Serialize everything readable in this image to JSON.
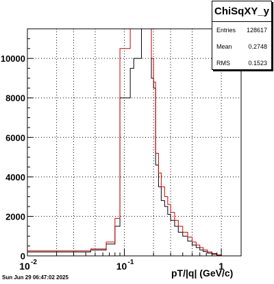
{
  "stats": {
    "name": "ChiSqXY_y",
    "rows": [
      {
        "label": "Entries",
        "value": "128617"
      },
      {
        "label": "Mean",
        "value": "0.2748"
      },
      {
        "label": "RMS",
        "value": "0.1523"
      }
    ]
  },
  "footer": "Sun Jun 29 06:47:02 2025",
  "chart_data": {
    "type": "line",
    "xlabel": "pT/|q| (GeV/c)",
    "x_scale": "log",
    "xlim": [
      0.01,
      1.6
    ],
    "ylim": [
      0,
      11500
    ],
    "grid": true,
    "x_ticks": [
      {
        "v": 0.01,
        "label": "10",
        "exp": "-2"
      },
      {
        "v": 0.1,
        "label": "10",
        "exp": "-1"
      },
      {
        "v": 1,
        "label": "1",
        "exp": ""
      }
    ],
    "y_ticks": [
      {
        "v": 0,
        "label": "0"
      },
      {
        "v": 2000,
        "label": "2000"
      },
      {
        "v": 4000,
        "label": "4000"
      },
      {
        "v": 6000,
        "label": "6000"
      },
      {
        "v": 8000,
        "label": "8000"
      },
      {
        "v": 10000,
        "label": "10000"
      }
    ],
    "series": [
      {
        "color": "#000000",
        "edges": [
          0.01,
          0.045,
          0.065,
          0.08,
          0.09,
          0.115,
          0.125,
          0.15,
          0.17,
          0.19,
          0.2,
          0.21,
          0.225,
          0.24,
          0.26,
          0.28,
          0.3,
          0.33,
          0.36,
          0.4,
          0.45,
          0.5,
          0.55,
          0.6,
          0.65,
          0.72,
          0.8,
          0.9,
          1.0,
          1.6
        ],
        "values": [
          200,
          300,
          600,
          1500,
          8000,
          9500,
          10000,
          11500,
          11500,
          9000,
          8500,
          4600,
          3500,
          2800,
          2500,
          2100,
          1800,
          1500,
          1200,
          1000,
          750,
          550,
          420,
          300,
          220,
          140,
          80,
          40,
          0
        ]
      },
      {
        "color": "#cc0000",
        "edges": [
          0.01,
          0.045,
          0.065,
          0.08,
          0.09,
          0.115,
          0.125,
          0.15,
          0.17,
          0.19,
          0.2,
          0.21,
          0.225,
          0.24,
          0.26,
          0.28,
          0.3,
          0.33,
          0.36,
          0.4,
          0.45,
          0.5,
          0.55,
          0.6,
          0.65,
          0.72,
          0.8,
          0.9,
          1.0,
          1.6
        ],
        "values": [
          250,
          350,
          700,
          1900,
          10500,
          11500,
          11500,
          11500,
          11500,
          10000,
          8800,
          5200,
          4200,
          3500,
          3000,
          2600,
          2200,
          1800,
          1500,
          1200,
          950,
          700,
          550,
          420,
          300,
          200,
          120,
          50,
          0
        ]
      }
    ]
  }
}
